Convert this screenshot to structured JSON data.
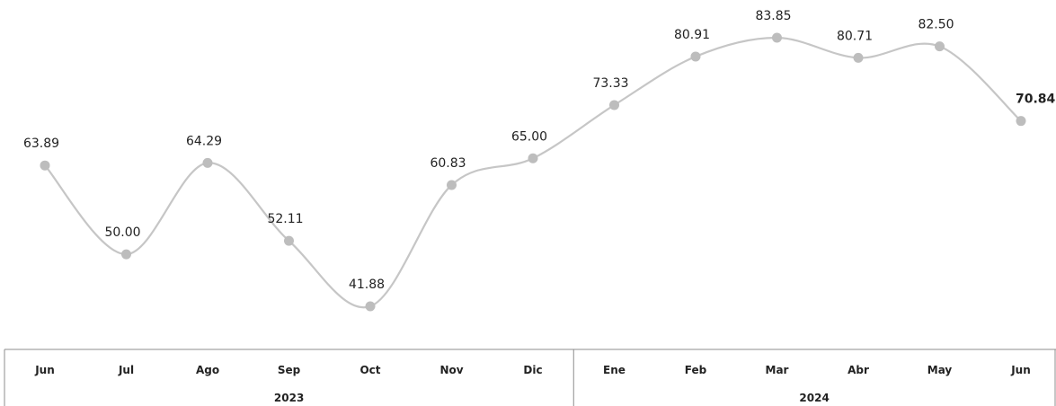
{
  "chart_data": {
    "type": "line",
    "categories": [
      "Jun",
      "Jul",
      "Ago",
      "Sep",
      "Oct",
      "Nov",
      "Dic",
      "Ene",
      "Feb",
      "Mar",
      "Abr",
      "May",
      "Jun"
    ],
    "groups": [
      {
        "label": "2023",
        "start": 0,
        "end": 6
      },
      {
        "label": "2024",
        "start": 7,
        "end": 12
      }
    ],
    "series": [
      {
        "values": [
          63.89,
          50.0,
          64.29,
          52.11,
          41.88,
          60.83,
          65.0,
          73.33,
          80.91,
          83.85,
          80.71,
          82.5,
          70.84
        ],
        "labels": [
          "63.89",
          "50.00",
          "64.29",
          "52.11",
          "41.88",
          "60.83",
          "65.00",
          "73.33",
          "80.91",
          "83.85",
          "80.71",
          "82.50",
          "70.84"
        ],
        "bold_last_label": true,
        "line_color": "#c6c6c6",
        "marker_color": "#bdbdbd",
        "smooth": true
      }
    ],
    "title": "",
    "xlabel": "",
    "ylabel": "",
    "ylim": [
      40,
      85
    ],
    "grid": false,
    "legend": "none"
  }
}
